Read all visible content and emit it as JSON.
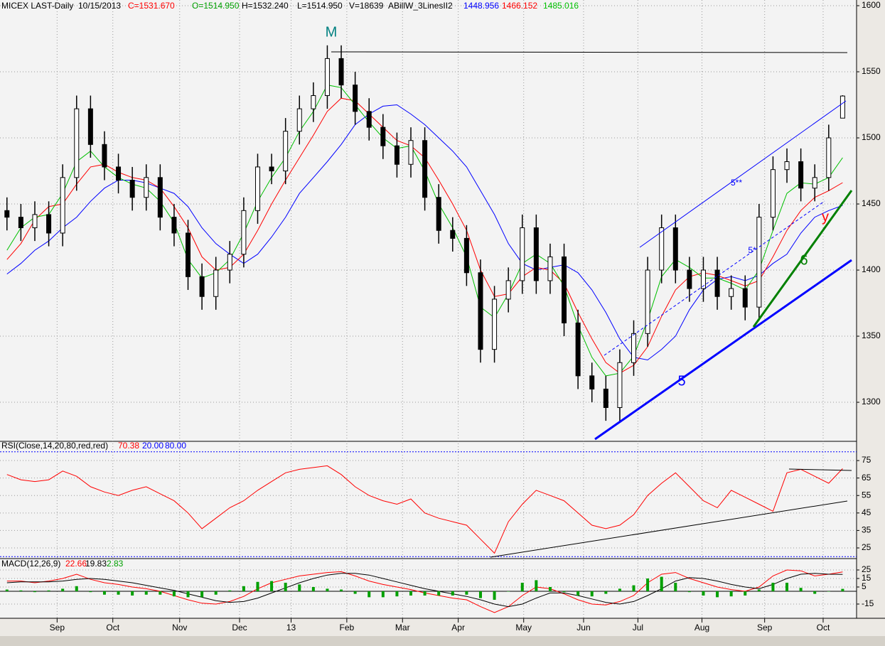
{
  "chart_data": [
    {
      "type": "candlestick",
      "header": [
        "MICEX LAST-Daily",
        "10/15/2013",
        "C=1531.670",
        "O=1514.950",
        "H=1532.240",
        "L=1514.950",
        "V=18639"
      ],
      "indicator": "ABillW_3LinesII2",
      "annotations": [
        "M",
        "5**",
        "5*",
        "5",
        "6",
        "y"
      ],
      "color": "#000000",
      "open": [
        1445,
        1440,
        1432,
        1442,
        1428,
        1470,
        1522,
        1495,
        1478,
        1468,
        1455,
        1470,
        1440,
        1428,
        1395,
        1380,
        1400,
        1412,
        1445,
        1478,
        1475,
        1505,
        1522,
        1532,
        1560,
        1540,
        1520,
        1508,
        1494,
        1480,
        1498,
        1455,
        1430,
        1424,
        1398,
        1340,
        1378,
        1392,
        1432,
        1392,
        1410,
        1360,
        1320,
        1310,
        1296,
        1330,
        1352,
        1400,
        1432,
        1400,
        1386,
        1400,
        1380,
        1386,
        1372,
        1440,
        1476,
        1482,
        1462,
        1470,
        1514.95
      ],
      "high": [
        1455,
        1450,
        1452,
        1452,
        1480,
        1532,
        1532,
        1505,
        1488,
        1478,
        1480,
        1480,
        1450,
        1438,
        1405,
        1410,
        1422,
        1455,
        1488,
        1488,
        1515,
        1532,
        1542,
        1570,
        1570,
        1550,
        1530,
        1518,
        1504,
        1508,
        1508,
        1465,
        1440,
        1434,
        1408,
        1388,
        1402,
        1442,
        1442,
        1420,
        1420,
        1370,
        1330,
        1320,
        1340,
        1362,
        1410,
        1442,
        1442,
        1410,
        1410,
        1410,
        1396,
        1396,
        1450,
        1486,
        1492,
        1492,
        1480,
        1510,
        1532.24
      ],
      "low": [
        1430,
        1422,
        1422,
        1418,
        1418,
        1460,
        1485,
        1468,
        1458,
        1445,
        1445,
        1430,
        1418,
        1385,
        1370,
        1370,
        1390,
        1402,
        1435,
        1465,
        1465,
        1495,
        1512,
        1522,
        1530,
        1510,
        1498,
        1484,
        1470,
        1470,
        1445,
        1420,
        1414,
        1388,
        1330,
        1330,
        1368,
        1382,
        1382,
        1382,
        1350,
        1310,
        1300,
        1286,
        1286,
        1320,
        1342,
        1390,
        1390,
        1376,
        1376,
        1370,
        1370,
        1362,
        1362,
        1430,
        1466,
        1452,
        1452,
        1460,
        1514.95
      ],
      "close": [
        1440,
        1432,
        1442,
        1428,
        1470,
        1522,
        1495,
        1478,
        1468,
        1455,
        1470,
        1440,
        1428,
        1395,
        1380,
        1400,
        1412,
        1445,
        1478,
        1475,
        1505,
        1522,
        1532,
        1560,
        1540,
        1520,
        1508,
        1494,
        1480,
        1498,
        1455,
        1430,
        1424,
        1398,
        1340,
        1378,
        1392,
        1432,
        1392,
        1410,
        1360,
        1320,
        1310,
        1296,
        1330,
        1352,
        1400,
        1432,
        1400,
        1386,
        1400,
        1380,
        1386,
        1372,
        1440,
        1476,
        1482,
        1462,
        1470,
        1500,
        1531.67
      ],
      "series": [
        {
          "color": "#0000ff",
          "values": [
            1397,
            1405,
            1415,
            1422,
            1432,
            1440,
            1452,
            1462,
            1468,
            1468,
            1466,
            1462,
            1458,
            1448,
            1432,
            1420,
            1412,
            1405,
            1412,
            1425,
            1440,
            1458,
            1470,
            1482,
            1495,
            1510,
            1518,
            1524,
            1525,
            1518,
            1510,
            1500,
            1490,
            1478,
            1460,
            1442,
            1420,
            1405,
            1400,
            1402,
            1404,
            1398,
            1385,
            1368,
            1348,
            1334,
            1332,
            1340,
            1350,
            1370,
            1385,
            1393,
            1395,
            1392,
            1396,
            1405,
            1412,
            1428,
            1440,
            1445,
            1448.956
          ]
        },
        {
          "color": "#ff0000",
          "values": [
            1408,
            1420,
            1438,
            1448,
            1450,
            1465,
            1478,
            1480,
            1474,
            1470,
            1468,
            1462,
            1448,
            1432,
            1410,
            1400,
            1402,
            1412,
            1430,
            1450,
            1468,
            1485,
            1502,
            1520,
            1530,
            1528,
            1518,
            1508,
            1498,
            1494,
            1485,
            1468,
            1450,
            1430,
            1400,
            1380,
            1382,
            1395,
            1402,
            1400,
            1390,
            1368,
            1348,
            1330,
            1322,
            1328,
            1342,
            1365,
            1385,
            1395,
            1398,
            1396,
            1392,
            1388,
            1392,
            1410,
            1430,
            1445,
            1455,
            1460,
            1466.152
          ]
        },
        {
          "color": "#00c000",
          "values": [
            1415,
            1432,
            1440,
            1442,
            1458,
            1482,
            1490,
            1478,
            1470,
            1465,
            1462,
            1452,
            1436,
            1408,
            1394,
            1398,
            1408,
            1428,
            1452,
            1470,
            1485,
            1505,
            1520,
            1540,
            1538,
            1525,
            1512,
            1500,
            1492,
            1494,
            1475,
            1450,
            1432,
            1410,
            1372,
            1364,
            1382,
            1405,
            1412,
            1405,
            1388,
            1358,
            1334,
            1320,
            1322,
            1335,
            1362,
            1395,
            1408,
            1402,
            1394,
            1394,
            1390,
            1385,
            1400,
            1430,
            1458,
            1466,
            1465,
            1470,
            1485.016
          ]
        }
      ],
      "xlim": [
        -0.5,
        61
      ],
      "xticks": [
        {
          "value": 3.6,
          "label": "Sep"
        },
        {
          "value": 7.6,
          "label": "Oct"
        },
        {
          "value": 12.4,
          "label": "Nov"
        },
        {
          "value": 16.7,
          "label": "Dec"
        },
        {
          "value": 20.4,
          "label": "13"
        },
        {
          "value": 24.4,
          "label": "Feb"
        },
        {
          "value": 28.4,
          "label": "Mar"
        },
        {
          "value": 32.4,
          "label": "Apr"
        },
        {
          "value": 37.1,
          "label": "May"
        },
        {
          "value": 41.4,
          "label": "Jun"
        },
        {
          "value": 45.3,
          "label": "Jul"
        },
        {
          "value": 49.9,
          "label": "Aug"
        },
        {
          "value": 54.4,
          "label": "Sep"
        },
        {
          "value": 58.6,
          "label": "Oct"
        }
      ],
      "ylim": [
        1271,
        1604.3
      ],
      "yticks": [
        1600,
        1550,
        1500,
        1450,
        1400,
        1350,
        1300
      ],
      "grid": true
    },
    {
      "type": "line",
      "title": "RSI(Close,14,20,80,red,red)",
      "color": "#ff0000",
      "values": [
        67,
        64,
        63,
        64,
        69,
        66,
        60,
        57,
        55,
        58,
        60,
        56,
        52,
        45,
        36,
        42,
        48,
        52,
        58,
        63,
        68,
        70,
        71,
        72,
        67,
        60,
        55,
        52,
        50,
        53,
        45,
        42,
        40,
        38,
        30,
        22,
        40,
        50,
        58,
        55,
        52,
        45,
        38,
        36,
        38,
        44,
        55,
        62,
        68,
        60,
        52,
        48,
        58,
        54,
        50,
        46,
        68,
        70,
        66,
        62,
        70.38
      ],
      "levels": [
        {
          "value": 20,
          "label": "20.00"
        },
        {
          "value": 80,
          "label": "80.00"
        }
      ],
      "levels_color": "#0000ff",
      "ylim": [
        19.3,
        85.6
      ],
      "yticks": [
        75,
        65,
        55,
        45,
        35,
        25
      ],
      "grid": true
    },
    {
      "type": "macd",
      "title": "MACD(12,26,9)",
      "series": [
        {
          "color": "#ff0000",
          "values": [
            12,
            12,
            10,
            12,
            15,
            20,
            14,
            10,
            8,
            5,
            3,
            0,
            -5,
            -10,
            -14,
            -15,
            -12,
            -6,
            3,
            10,
            14,
            18,
            20,
            22,
            23,
            18,
            12,
            8,
            5,
            2,
            -2,
            -5,
            -8,
            -10,
            -18,
            -25,
            -18,
            -5,
            5,
            3,
            -3,
            -10,
            -15,
            -16,
            -12,
            -5,
            10,
            20,
            22,
            15,
            10,
            5,
            2,
            0,
            5,
            18,
            25,
            24,
            18,
            20,
            22.66
          ]
        },
        {
          "color": "#000000",
          "values": [
            10,
            11,
            11,
            11,
            12,
            14,
            15,
            14,
            12,
            10,
            7,
            4,
            1,
            -3,
            -7,
            -11,
            -13,
            -12,
            -8,
            -2,
            4,
            10,
            15,
            19,
            21,
            21,
            19,
            15,
            11,
            7,
            3,
            0,
            -3,
            -6,
            -10,
            -15,
            -18,
            -15,
            -8,
            -2,
            -2,
            -5,
            -9,
            -13,
            -15,
            -12,
            -5,
            3,
            12,
            16,
            15,
            12,
            8,
            5,
            3,
            8,
            15,
            20,
            21,
            20,
            19.83
          ]
        },
        {
          "color": "#00a000",
          "histogram": true,
          "values": [
            2,
            1,
            -1,
            1,
            3,
            6,
            -1,
            -4,
            -4,
            -5,
            -4,
            -4,
            -6,
            -7,
            -7,
            -4,
            1,
            6,
            11,
            12,
            10,
            8,
            5,
            3,
            2,
            -3,
            -7,
            -7,
            -6,
            -5,
            -5,
            -5,
            -5,
            -4,
            -8,
            -10,
            0,
            10,
            13,
            5,
            -1,
            -5,
            -6,
            -3,
            3,
            7,
            15,
            17,
            10,
            -1,
            -5,
            -7,
            -6,
            -5,
            2,
            10,
            10,
            4,
            -3,
            0,
            2.83
          ]
        }
      ],
      "ylim": [
        -31.7,
        37.5
      ],
      "yticks": [
        25,
        15,
        5,
        -15
      ],
      "grid": true
    }
  ]
}
